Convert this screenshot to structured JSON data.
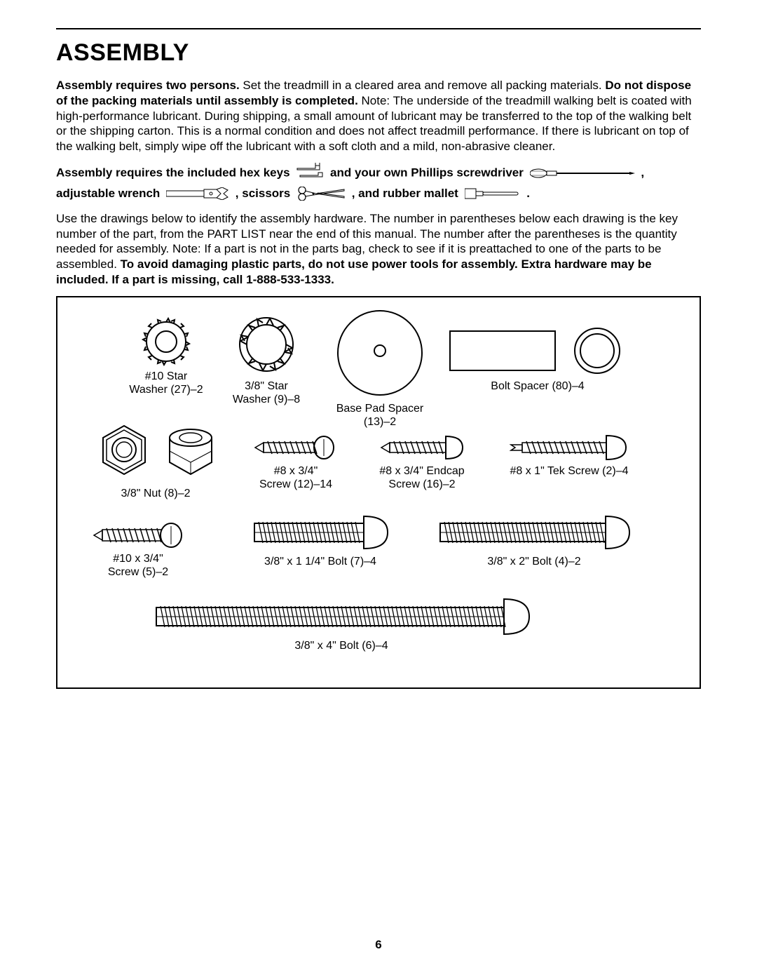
{
  "title": "ASSEMBLY",
  "para1_runs": [
    {
      "text": "Assembly requires two persons.",
      "bold": true
    },
    {
      "text": " Set the treadmill in a cleared area and remove all packing materials. ",
      "bold": false
    },
    {
      "text": "Do not dispose of the packing materials until assembly is completed.",
      "bold": true
    },
    {
      "text": " Note: The underside of the treadmill walking belt is coated with high-performance lubricant. During shipping, a small amount of lubricant may be transferred to the top of the walking belt or the shipping carton. This is a normal condition and does not affect treadmill performance. If there is lubricant on top of the walking belt, simply wipe off the lubricant with a soft cloth and a mild, non-abrasive cleaner.",
      "bold": false
    }
  ],
  "tools_line": {
    "t1": "Assembly requires the included hex keys",
    "t2": "and your own Phillips screwdriver",
    "t3": "adjustable wrench",
    "t4": ", scissors",
    "t5": ", and rubber mallet",
    "comma": ",",
    "period": "."
  },
  "para2_runs": [
    {
      "text": "Use the drawings below to identify the assembly hardware. The number in parentheses below each drawing is the key number of the part, from the PART LIST near the end of this manual. The number after the parentheses is the quantity needed for assembly. Note: If a part is not in the parts bag, check to see if it is preattached to one of the parts to be assembled. ",
      "bold": false
    },
    {
      "text": "To avoid damaging plastic parts, do not use power tools for assembly. Extra hardware may be included. If a part is missing, call 1-888-533-1333.",
      "bold": true
    }
  ],
  "hardware": {
    "star10": {
      "label1": "#10 Star",
      "label2": "Washer (27)–2"
    },
    "star38": {
      "label1": "3/8\" Star",
      "label2": "Washer (9)–8"
    },
    "basepad": {
      "label1": "Base Pad Spacer",
      "label2": "(13)–2"
    },
    "boltspc": {
      "label1": "Bolt Spacer (80)–4"
    },
    "nut38": {
      "label1": "3/8\" Nut (8)–2"
    },
    "scr8_34": {
      "label1": "#8 x 3/4\"",
      "label2": "Screw (12)–14"
    },
    "endcap": {
      "label1": "#8 x 3/4\" Endcap",
      "label2": "Screw (16)–2"
    },
    "tek": {
      "label1": "#8 x 1\" Tek Screw (2)–4"
    },
    "scr10": {
      "label1": "#10 x 3/4\"",
      "label2": "Screw (5)–2"
    },
    "bolt114": {
      "label1": "3/8\" x 1 1/4\" Bolt (7)–4"
    },
    "bolt2": {
      "label1": "3/8\" x 2\" Bolt (4)–2"
    },
    "bolt4": {
      "label1": "3/8\" x 4\" Bolt (6)–4"
    }
  },
  "page_number": "6"
}
